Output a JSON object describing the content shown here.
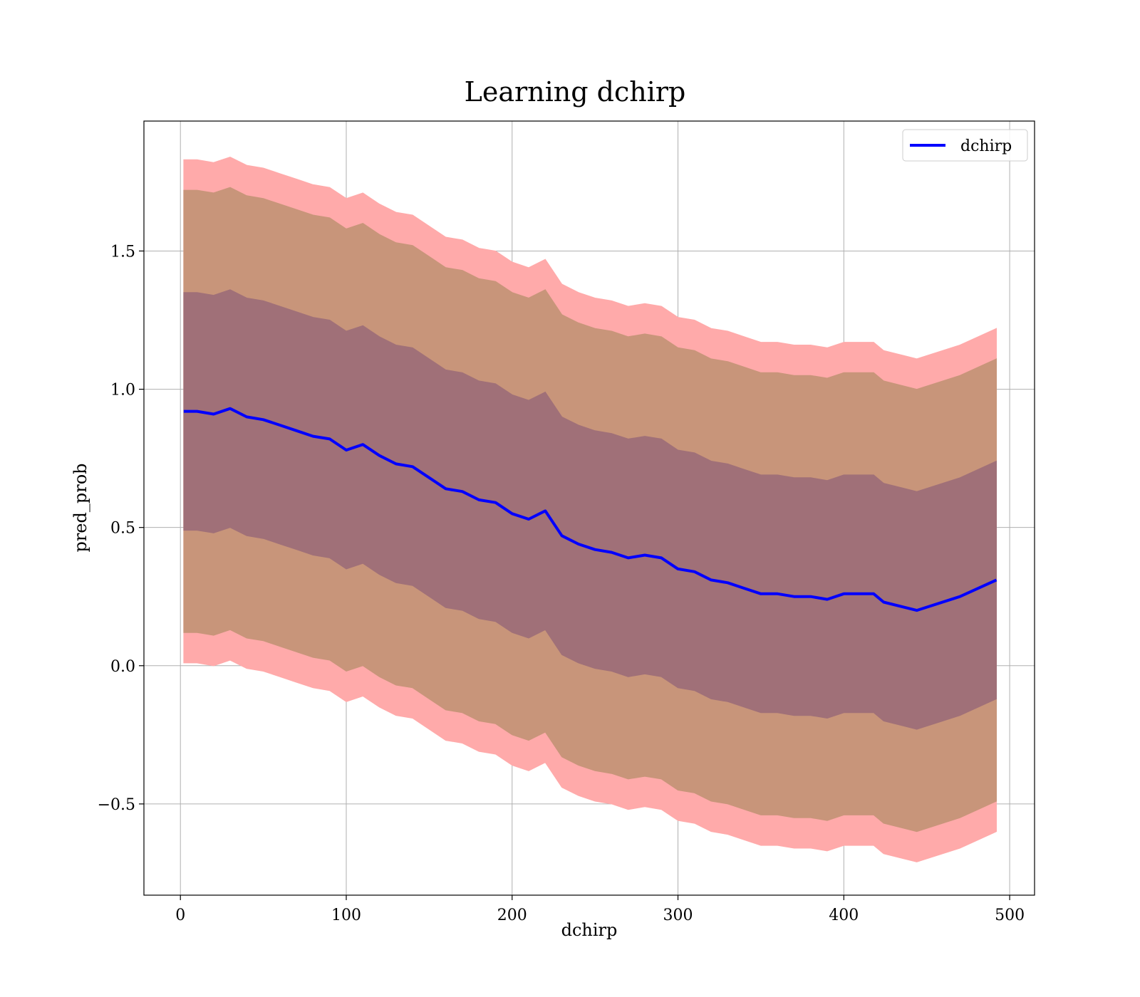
{
  "chart_data": {
    "type": "line",
    "title": "Learning dchirp",
    "xlabel": "dchirp",
    "ylabel": "pred_prob",
    "xlim": [
      -22,
      515
    ],
    "ylim": [
      -0.83,
      1.97
    ],
    "xticks": [
      0,
      100,
      200,
      300,
      400,
      500
    ],
    "xtick_labels": [
      "0",
      "100",
      "200",
      "300",
      "400",
      "500"
    ],
    "yticks": [
      -0.5,
      0.0,
      0.5,
      1.0,
      1.5
    ],
    "ytick_labels": [
      "−0.5",
      "0.0",
      "0.5",
      "1.0",
      "1.5"
    ],
    "grid": true,
    "legend": {
      "position": "top-right",
      "entries": [
        "dchirp"
      ]
    },
    "colors": {
      "line": "#0000ff",
      "band_outer": "#ffaaaa",
      "band_middle": "#c8957a",
      "band_inner": "#a07078"
    },
    "x": [
      2,
      10,
      20,
      30,
      40,
      50,
      60,
      70,
      80,
      90,
      100,
      110,
      120,
      130,
      140,
      150,
      160,
      170,
      180,
      190,
      200,
      210,
      220,
      230,
      240,
      250,
      260,
      270,
      280,
      290,
      300,
      310,
      320,
      330,
      340,
      350,
      360,
      370,
      380,
      390,
      400,
      410,
      418,
      424,
      444,
      470,
      492
    ],
    "series": [
      {
        "name": "dchirp",
        "values": [
          0.92,
          0.92,
          0.91,
          0.93,
          0.9,
          0.89,
          0.87,
          0.85,
          0.83,
          0.82,
          0.78,
          0.8,
          0.76,
          0.73,
          0.72,
          0.68,
          0.64,
          0.63,
          0.6,
          0.59,
          0.55,
          0.53,
          0.56,
          0.47,
          0.44,
          0.42,
          0.41,
          0.39,
          0.4,
          0.39,
          0.35,
          0.34,
          0.31,
          0.3,
          0.28,
          0.26,
          0.26,
          0.25,
          0.25,
          0.24,
          0.26,
          0.26,
          0.26,
          0.23,
          0.2,
          0.25,
          0.31
        ]
      }
    ],
    "bands": [
      {
        "name": "outer",
        "offset": 0.91
      },
      {
        "name": "middle",
        "offset": 0.8
      },
      {
        "name": "inner",
        "offset": 0.43
      }
    ]
  }
}
